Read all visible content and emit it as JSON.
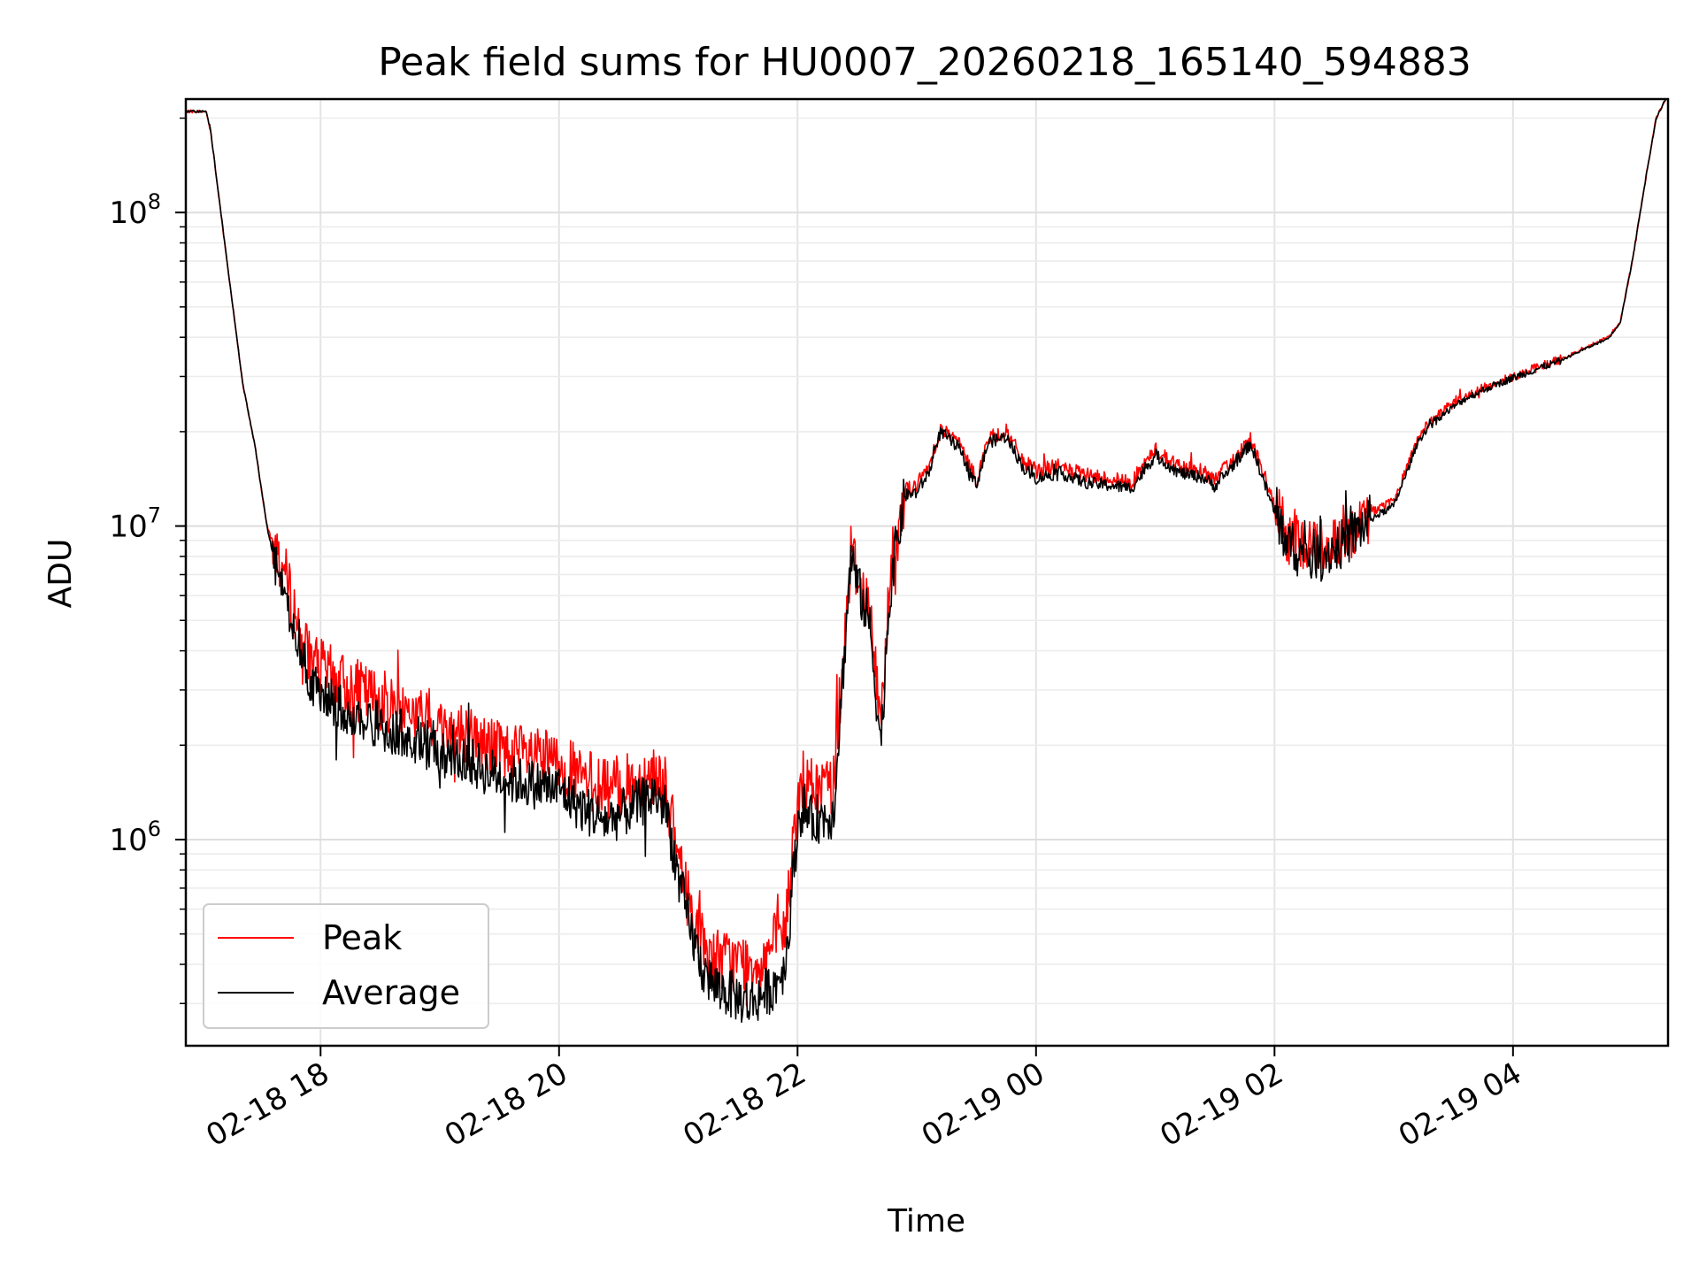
{
  "chart_data": {
    "type": "line",
    "title": "Peak field sums for HU0007_20260218_165140_594883",
    "xlabel": "Time",
    "ylabel": "ADU",
    "yscale": "log",
    "xlim_hours_since_02-18_00": [
      16.87,
      29.3
    ],
    "ylim": [
      220000,
      230000000
    ],
    "grid": "on",
    "legend_placement": "lower-left",
    "x_ticks": [
      {
        "hour": 18,
        "label": "02-18 18"
      },
      {
        "hour": 20,
        "label": "02-18 20"
      },
      {
        "hour": 22,
        "label": "02-18 22"
      },
      {
        "hour": 24,
        "label": "02-19 00"
      },
      {
        "hour": 26,
        "label": "02-19 02"
      },
      {
        "hour": 28,
        "label": "02-19 04"
      }
    ],
    "y_ticks": [
      {
        "value": 1000000,
        "base": "10",
        "exp": "6"
      },
      {
        "value": 10000000,
        "base": "10",
        "exp": "7"
      },
      {
        "value": 100000000,
        "base": "10",
        "exp": "8"
      }
    ],
    "series": [
      {
        "name": "Peak",
        "color": "#ff0000",
        "noise": 0.1,
        "x": [
          16.87,
          17.04,
          17.08,
          17.15,
          17.25,
          17.35,
          17.45,
          17.55,
          17.62,
          17.65,
          17.7,
          17.8,
          17.9,
          18.0,
          18.2,
          18.5,
          18.8,
          19.0,
          19.2,
          19.4,
          19.6,
          19.8,
          20.0,
          20.2,
          20.4,
          20.6,
          20.8,
          20.9,
          21.0,
          21.1,
          21.2,
          21.3,
          21.45,
          21.6,
          21.7,
          21.8,
          21.9,
          22.0,
          22.05,
          22.1,
          22.3,
          22.45,
          22.5,
          22.6,
          22.7,
          22.75,
          22.8,
          22.9,
          23.0,
          23.1,
          23.2,
          23.35,
          23.5,
          23.6,
          23.75,
          23.9,
          24.0,
          24.2,
          24.4,
          24.6,
          24.8,
          25.0,
          25.2,
          25.4,
          25.5,
          25.6,
          25.8,
          25.9,
          26.0,
          26.1,
          26.2,
          26.4,
          26.6,
          26.8,
          27.0,
          27.1,
          27.2,
          27.3,
          27.4,
          27.6,
          27.8,
          28.0,
          28.2,
          28.4,
          28.6,
          28.8,
          28.9,
          29.0,
          29.1,
          29.2,
          29.28
        ],
        "y": [
          210000000,
          210000000,
          180000000,
          110000000,
          55000000,
          28000000,
          18000000,
          10000000,
          8500000,
          8000000,
          7000000,
          5000000,
          3800000,
          3500000,
          3100000,
          2800000,
          2500000,
          2300000,
          2200000,
          2000000,
          1900000,
          1800000,
          1750000,
          1550000,
          1450000,
          1500000,
          1650000,
          1450000,
          850000,
          620000,
          470000,
          420000,
          410000,
          400000,
          420000,
          460000,
          520000,
          1350000,
          1550000,
          1450000,
          1500000,
          8500000,
          7000000,
          5500000,
          2300000,
          5000000,
          8000000,
          13000000,
          13500000,
          15500000,
          20500000,
          18500000,
          14000000,
          19000000,
          20000000,
          16000000,
          15000000,
          15500000,
          14500000,
          14200000,
          13800000,
          17500000,
          15500000,
          15000000,
          14000000,
          15500000,
          19000000,
          15000000,
          11500000,
          9500000,
          8800000,
          8700000,
          9500000,
          11000000,
          12000000,
          15000000,
          19000000,
          21500000,
          23000000,
          26000000,
          28000000,
          30000000,
          32000000,
          34000000,
          37000000,
          40000000,
          45000000,
          70000000,
          120000000,
          200000000,
          230000000
        ]
      },
      {
        "name": "Average",
        "color": "#000000",
        "noise": 0.08,
        "x": [
          16.87,
          17.04,
          17.08,
          17.15,
          17.25,
          17.35,
          17.45,
          17.55,
          17.62,
          17.65,
          17.7,
          17.8,
          17.9,
          18.0,
          18.2,
          18.5,
          18.8,
          19.0,
          19.2,
          19.4,
          19.6,
          19.8,
          20.0,
          20.2,
          20.4,
          20.6,
          20.8,
          20.9,
          21.0,
          21.1,
          21.2,
          21.3,
          21.45,
          21.6,
          21.7,
          21.8,
          21.9,
          22.0,
          22.05,
          22.1,
          22.3,
          22.45,
          22.5,
          22.6,
          22.7,
          22.75,
          22.8,
          22.9,
          23.0,
          23.1,
          23.2,
          23.35,
          23.5,
          23.6,
          23.75,
          23.9,
          24.0,
          24.2,
          24.4,
          24.6,
          24.8,
          25.0,
          25.2,
          25.4,
          25.5,
          25.6,
          25.8,
          25.9,
          26.0,
          26.1,
          26.2,
          26.4,
          26.6,
          26.8,
          27.0,
          27.1,
          27.2,
          27.3,
          27.4,
          27.6,
          27.8,
          28.0,
          28.2,
          28.4,
          28.6,
          28.8,
          28.9,
          29.0,
          29.1,
          29.2,
          29.28
        ],
        "y": [
          210000000,
          210000000,
          180000000,
          110000000,
          55000000,
          28000000,
          18000000,
          10000000,
          7500000,
          7000000,
          6300000,
          4500000,
          3200000,
          2900000,
          2600000,
          2300000,
          2100000,
          1900000,
          1800000,
          1650000,
          1550000,
          1500000,
          1450000,
          1250000,
          1150000,
          1250000,
          1400000,
          1250000,
          750000,
          520000,
          390000,
          340000,
          320000,
          300000,
          320000,
          340000,
          400000,
          1100000,
          1300000,
          1150000,
          1200000,
          8200000,
          6500000,
          5000000,
          2000000,
          4600000,
          7500000,
          12500000,
          12800000,
          14800000,
          20000000,
          17800000,
          13500000,
          18500000,
          19300000,
          15200000,
          14200000,
          14800000,
          13800000,
          13500000,
          13200000,
          16800000,
          14800000,
          14300000,
          13400000,
          14800000,
          18300000,
          14300000,
          11000000,
          9000000,
          8200000,
          8100000,
          8900000,
          10500000,
          11600000,
          14500000,
          18500000,
          21000000,
          22500000,
          25500000,
          27700000,
          29700000,
          31700000,
          33700000,
          36700000,
          39700000,
          44700000,
          70000000,
          120000000,
          200000000,
          230000000
        ]
      }
    ],
    "legend": [
      {
        "label": "Peak",
        "color": "#ff0000"
      },
      {
        "label": "Average",
        "color": "#000000"
      }
    ]
  }
}
